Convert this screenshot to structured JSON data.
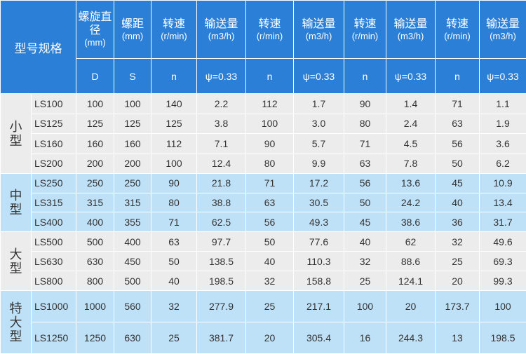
{
  "header": {
    "title": "型号规格",
    "columns": [
      {
        "name": "螺旋直径",
        "unit": "(mm)",
        "symbol": "D"
      },
      {
        "name": "螺距",
        "unit": "(mm)",
        "symbol": "S"
      },
      {
        "name": "转速",
        "unit": "(r/min)",
        "symbol": "n"
      },
      {
        "name": "输送量",
        "unit": "(m3/h)",
        "symbol": "ψ=0.33"
      },
      {
        "name": "转速",
        "unit": "(r/min)",
        "symbol": "n"
      },
      {
        "name": "输送量",
        "unit": "(m3/h)",
        "symbol": "ψ=0.33"
      },
      {
        "name": "转速",
        "unit": "(r/min)",
        "symbol": "n"
      },
      {
        "name": "输送量",
        "unit": "(m3/h)",
        "symbol": "ψ=0.33"
      },
      {
        "name": "转速",
        "unit": "(r/min)",
        "symbol": "n"
      },
      {
        "name": "输送量",
        "unit": "(m3/h)",
        "symbol": "ψ=0.33"
      }
    ]
  },
  "groups": [
    {
      "label": "小型",
      "rows": [
        [
          "LS100",
          "100",
          "100",
          "140",
          "2.2",
          "112",
          "1.7",
          "90",
          "1.4",
          "71",
          "1.1"
        ],
        [
          "LS125",
          "125",
          "125",
          "125",
          "3.8",
          "100",
          "3.0",
          "80",
          "2.4",
          "63",
          "1.9"
        ],
        [
          "LS160",
          "160",
          "160",
          "112",
          "7.1",
          "90",
          "5.7",
          "71",
          "4.5",
          "56",
          "3.6"
        ],
        [
          "LS200",
          "200",
          "200",
          "100",
          "12.4",
          "80",
          "9.9",
          "63",
          "7.8",
          "50",
          "6.2"
        ]
      ]
    },
    {
      "label": "中型",
      "rows": [
        [
          "LS250",
          "250",
          "250",
          "90",
          "21.8",
          "71",
          "17.2",
          "56",
          "13.6",
          "45",
          "10.9"
        ],
        [
          "LS315",
          "315",
          "315",
          "80",
          "38.8",
          "63",
          "30.5",
          "50",
          "24.2",
          "40",
          "13.4"
        ],
        [
          "LS400",
          "400",
          "355",
          "71",
          "62.5",
          "56",
          "49.3",
          "45",
          "38.6",
          "36",
          "31.7"
        ]
      ]
    },
    {
      "label": "大型",
      "rows": [
        [
          "LS500",
          "500",
          "400",
          "63",
          "97.7",
          "50",
          "77.6",
          "40",
          "62",
          "32",
          "49.6"
        ],
        [
          "LS630",
          "630",
          "450",
          "50",
          "138.5",
          "40",
          "110.3",
          "32",
          "88.6",
          "25",
          "69.3"
        ],
        [
          "LS800",
          "800",
          "500",
          "40",
          "198.5",
          "32",
          "158.8",
          "25",
          "124.1",
          "20",
          "99.3"
        ]
      ]
    },
    {
      "label": "特大型",
      "rows": [
        [
          "LS1000",
          "1000",
          "560",
          "32",
          "277.9",
          "25",
          "217.1",
          "100",
          "20",
          "173.7",
          "100"
        ],
        [
          "LS1250",
          "1250",
          "630",
          "25",
          "381.7",
          "20",
          "305.4",
          "16",
          "244.3",
          "13",
          "198.5"
        ]
      ]
    }
  ]
}
